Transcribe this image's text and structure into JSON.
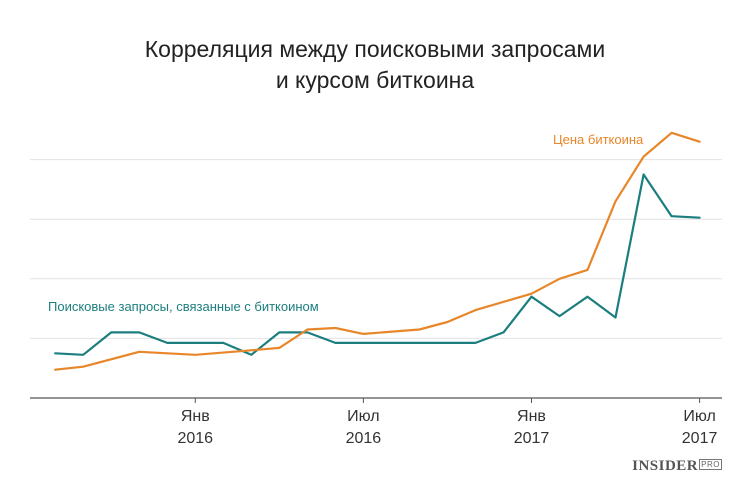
{
  "chart_data": {
    "type": "line",
    "title_lines": [
      "Корреляция между поисковыми запросами",
      "и курсом биткоина"
    ],
    "xlabel": "",
    "ylabel": "",
    "x_ticks": [
      {
        "line1": "Янв",
        "line2": "2016",
        "x": 12
      },
      {
        "line1": "Июл",
        "line2": "2016",
        "x": 18
      },
      {
        "line1": "Янв",
        "line2": "2017",
        "x": 24
      },
      {
        "line1": "Июл",
        "line2": "2017",
        "x": 30
      }
    ],
    "xlim": [
      6.1,
      30.8
    ],
    "ylim": [
      0,
      100
    ],
    "y_gridlines": [
      20,
      40,
      60,
      80
    ],
    "y_tick_labels_shown": false,
    "series": [
      {
        "name": "Поисковые запросы, связанные с биткоином",
        "color": "#1c7e7e",
        "points": [
          [
            7,
            15
          ],
          [
            8,
            14.5
          ],
          [
            9,
            22
          ],
          [
            10,
            22
          ],
          [
            11,
            18.5
          ],
          [
            12,
            18.5
          ],
          [
            13,
            18.5
          ],
          [
            14,
            14.5
          ],
          [
            15,
            22
          ],
          [
            16,
            22
          ],
          [
            17,
            18.5
          ],
          [
            18,
            18.5
          ],
          [
            19,
            18.5
          ],
          [
            20,
            18.5
          ],
          [
            21,
            18.5
          ],
          [
            22,
            18.5
          ],
          [
            23,
            22
          ],
          [
            24,
            34
          ],
          [
            25,
            27.5
          ],
          [
            26,
            34
          ],
          [
            27,
            27
          ],
          [
            28,
            75
          ],
          [
            29,
            61
          ],
          [
            30,
            60.5
          ]
        ]
      },
      {
        "name": "Цена биткоина",
        "color": "#e8862a",
        "points": [
          [
            7,
            9.5
          ],
          [
            8,
            10.5
          ],
          [
            10,
            15.5
          ],
          [
            12,
            14.5
          ],
          [
            14,
            16
          ],
          [
            15,
            16.8
          ],
          [
            16,
            23
          ],
          [
            17,
            23.5
          ],
          [
            18,
            21.5
          ],
          [
            20,
            23
          ],
          [
            21,
            25.5
          ],
          [
            22,
            29.5
          ],
          [
            24,
            35
          ],
          [
            25,
            40
          ],
          [
            26,
            43
          ],
          [
            27,
            66
          ],
          [
            28,
            81
          ],
          [
            29,
            89
          ],
          [
            30,
            86
          ]
        ]
      }
    ]
  },
  "brand": {
    "name": "INSIDER",
    "suffix": "PRO"
  }
}
